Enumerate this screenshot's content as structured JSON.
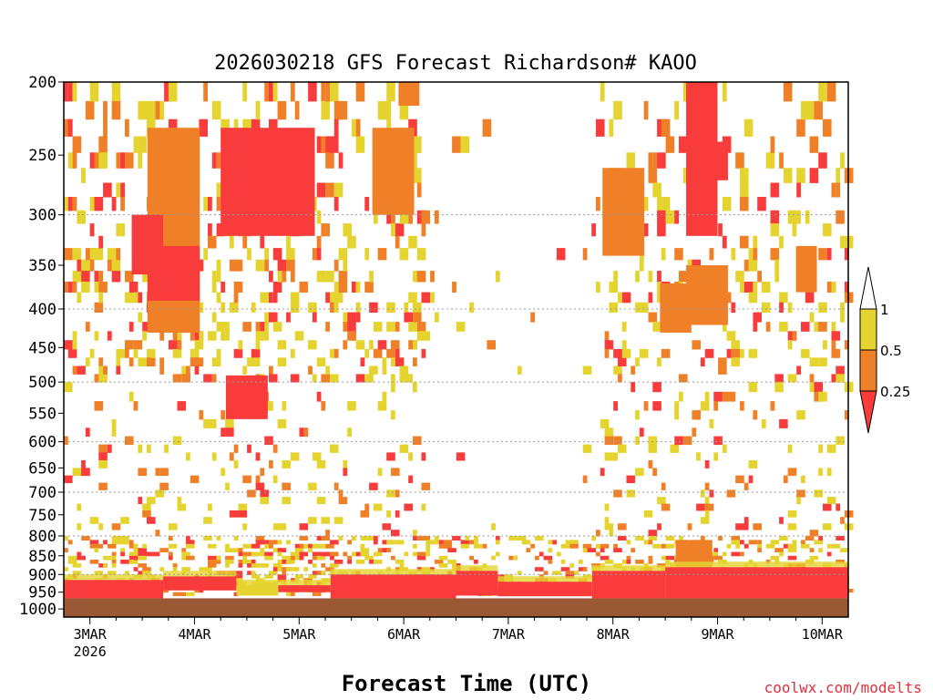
{
  "chart_data": {
    "type": "heatmap",
    "title": "2026030218 GFS Forecast Richardson# KAOO",
    "xlabel": "Forecast Time (UTC)",
    "ylabel": "",
    "credit": "coolwx.com/modelts",
    "x_ticks": [
      {
        "label": "3MAR",
        "sub": "2026",
        "day": 3
      },
      {
        "label": "4MAR",
        "day": 4
      },
      {
        "label": "5MAR",
        "day": 5
      },
      {
        "label": "6MAR",
        "day": 6
      },
      {
        "label": "7MAR",
        "day": 7
      },
      {
        "label": "8MAR",
        "day": 8
      },
      {
        "label": "9MAR",
        "day": 9
      },
      {
        "label": "10MAR",
        "day": 10
      }
    ],
    "xlim_days": [
      2.75,
      10.25
    ],
    "y_ticks": [
      200,
      250,
      300,
      350,
      400,
      450,
      500,
      550,
      600,
      650,
      700,
      750,
      800,
      850,
      900,
      950,
      1000
    ],
    "ylim_hpa": [
      200,
      1025
    ],
    "y_scale": "log",
    "dotted_gridlines_hpa": [
      300,
      400,
      500,
      600,
      700,
      800,
      900
    ],
    "legend": {
      "position": "right",
      "bins": [
        {
          "label": "1",
          "from": 1,
          "to": null,
          "color": "#ffffff"
        },
        {
          "label": "0.5",
          "from": 0.5,
          "to": 1,
          "color": "#e5d42f"
        },
        {
          "label": "0.25",
          "from": 0.25,
          "to": 0.5,
          "color": "#ef8027"
        },
        {
          "label": "",
          "from": null,
          "to": 0.25,
          "color": "#f83c3c"
        }
      ],
      "tick_labels": [
        "1",
        "0.5",
        "0.25"
      ]
    },
    "colors": {
      "ri_gt_1": "#ffffff",
      "ri_05_1": "#e5d42f",
      "ri_025_05": "#ef8027",
      "ri_lt_025": "#f83c3c",
      "ground": "#9a5834"
    },
    "surface_pressure_hpa": 968,
    "bands": [
      {
        "t0": 2.75,
        "t1": 3.7,
        "p0": 915,
        "p1": 968,
        "c": 3
      },
      {
        "t0": 3.7,
        "t1": 4.4,
        "p0": 905,
        "p1": 945,
        "c": 3
      },
      {
        "t0": 4.4,
        "t1": 4.8,
        "p0": 930,
        "p1": 960,
        "c": 1
      },
      {
        "t0": 4.8,
        "t1": 5.3,
        "p0": 930,
        "p1": 950,
        "c": 3
      },
      {
        "t0": 5.3,
        "t1": 6.5,
        "p0": 900,
        "p1": 968,
        "c": 3
      },
      {
        "t0": 6.5,
        "t1": 6.9,
        "p0": 890,
        "p1": 960,
        "c": 3
      },
      {
        "t0": 6.9,
        "t1": 7.8,
        "p0": 920,
        "p1": 962,
        "c": 3
      },
      {
        "t0": 7.8,
        "t1": 8.5,
        "p0": 890,
        "p1": 968,
        "c": 3
      },
      {
        "t0": 8.5,
        "t1": 10.25,
        "p0": 880,
        "p1": 968,
        "c": 3
      }
    ],
    "cells": [
      {
        "t0": 3.55,
        "t1": 4.05,
        "p0": 230,
        "p1": 430,
        "c": 2
      },
      {
        "t0": 3.55,
        "t1": 4.05,
        "p0": 330,
        "p1": 390,
        "c": 3
      },
      {
        "t0": 4.25,
        "t1": 5.15,
        "p0": 230,
        "p1": 320,
        "c": 3
      },
      {
        "t0": 4.3,
        "t1": 4.7,
        "p0": 490,
        "p1": 560,
        "c": 3
      },
      {
        "t0": 5.7,
        "t1": 6.1,
        "p0": 230,
        "p1": 300,
        "c": 2
      },
      {
        "t0": 5.95,
        "t1": 6.15,
        "p0": 200,
        "p1": 215,
        "c": 2
      },
      {
        "t0": 3.4,
        "t1": 3.7,
        "p0": 300,
        "p1": 360,
        "c": 3
      },
      {
        "t0": 7.9,
        "t1": 8.3,
        "p0": 260,
        "p1": 340,
        "c": 2
      },
      {
        "t0": 8.7,
        "t1": 9.0,
        "p0": 200,
        "p1": 320,
        "c": 3
      },
      {
        "t0": 8.9,
        "t1": 9.1,
        "p0": 240,
        "p1": 270,
        "c": 3
      },
      {
        "t0": 8.45,
        "t1": 8.75,
        "p0": 370,
        "p1": 430,
        "c": 2
      },
      {
        "t0": 8.7,
        "t1": 9.1,
        "p0": 350,
        "p1": 420,
        "c": 2
      },
      {
        "t0": 9.75,
        "t1": 9.95,
        "p0": 330,
        "p1": 380,
        "c": 2
      },
      {
        "t0": 8.6,
        "t1": 8.95,
        "p0": 810,
        "p1": 880,
        "c": 2
      }
    ]
  }
}
